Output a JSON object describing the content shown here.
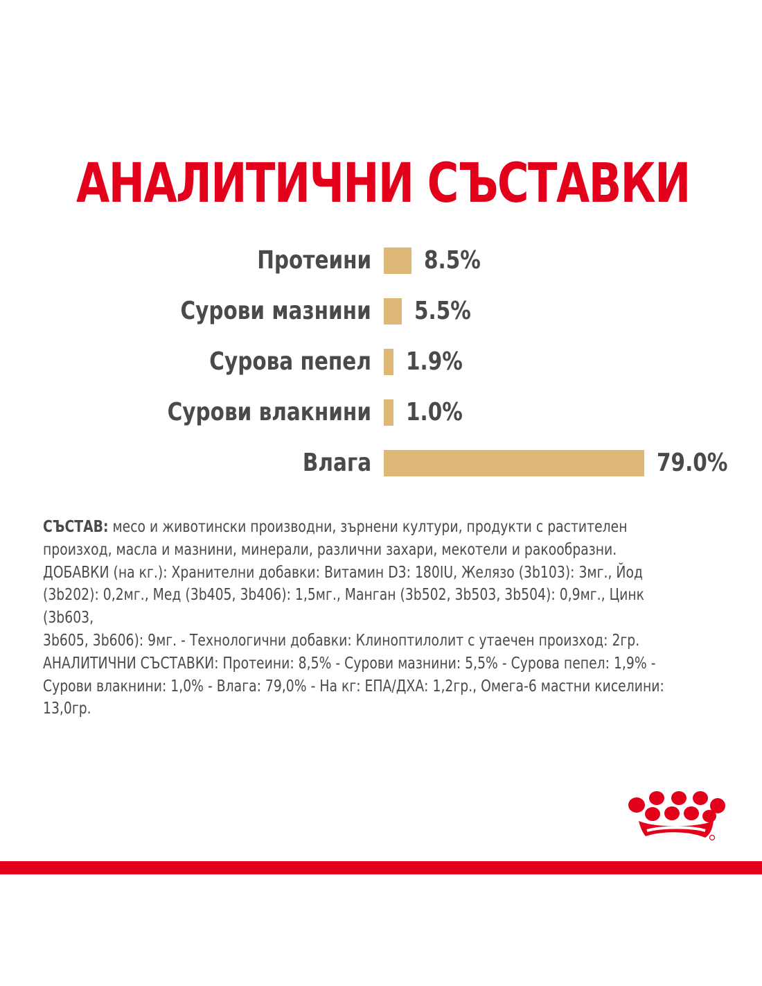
{
  "title": "АНАЛИТИЧНИ СЪСТАВКИ",
  "chart_data": {
    "type": "bar",
    "orientation": "horizontal",
    "title": "АНАЛИТИЧНИ СЪСТАВКИ",
    "categories": [
      "Протеини",
      "Сурови мазнини",
      "Сурова пепел",
      "Сурови влакнини",
      "Влага"
    ],
    "values": [
      8.5,
      5.5,
      1.9,
      1.0,
      79.0
    ],
    "value_labels": [
      "8.5%",
      "5.5%",
      "1.9%",
      "1.0%",
      "79.0%"
    ],
    "unit": "%",
    "bar_color": "#dcb776",
    "grid": false
  },
  "composition": {
    "heading": "СЪСТАВ:",
    "lines": [
      " месо и животински производни, зърнени култури, продукти с растителен",
      "произход, масла и мазнини, минерали, различни захари, мекотели и ракообразни.",
      "ДОБАВКИ (на кг.): Хранителни добавки: Витамин D3: 180IU, Желязо (3b103): 3мг., Йод",
      "(3b202): 0,2мг., Мед (3b405, 3b406): 1,5мг., Манган (3b502, 3b503, 3b504): 0,9мг., Цинк (3b603,",
      "3b605, 3b606): 9мг. - Технологични добавки: Клиноптилолит с утаечен произход: 2гр.",
      "АНАЛИТИЧНИ СЪСТАВКИ: Протеини: 8,5% - Сурови мазнини: 5,5% - Сурова пепел: 1,9% -",
      "Сурови влакнини: 1,0% - Влага: 79,0% - На кг: ЕПА/ДХА: 1,2гр., Омега-6 мастни киселини:",
      "13,0гр."
    ]
  },
  "colors": {
    "accent_red": "#e2001a",
    "text_gray": "#4a4a4a",
    "bar_gold": "#dcb776"
  },
  "logo": {
    "icon": "royal-crown-logo-icon"
  }
}
